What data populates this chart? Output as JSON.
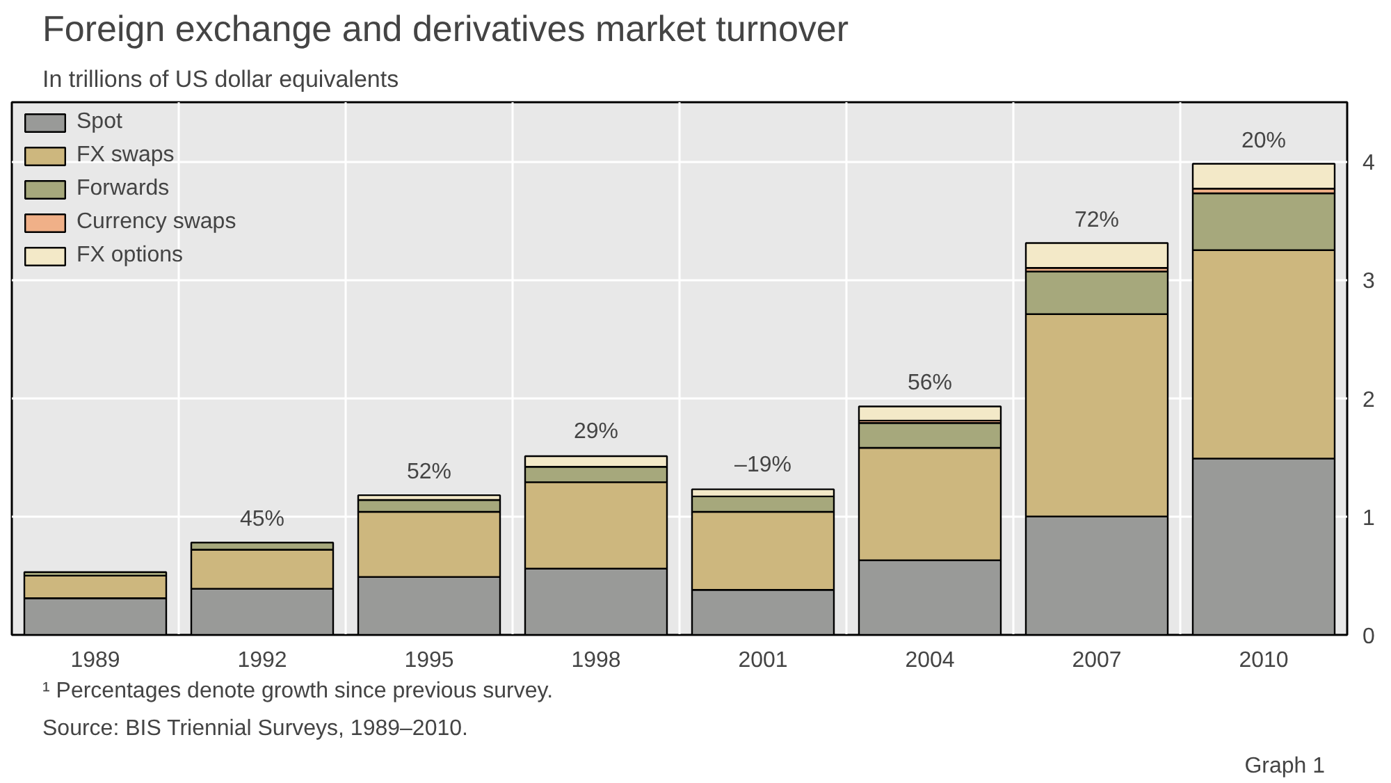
{
  "chart_data": {
    "type": "bar",
    "stacked": true,
    "title": "Foreign exchange and derivatives market turnover",
    "subtitle": "In trillions of US dollar equivalents",
    "categories": [
      "1989",
      "1992",
      "1995",
      "1998",
      "2001",
      "2004",
      "2007",
      "2010"
    ],
    "series": [
      {
        "name": "Spot",
        "color": "#999a98",
        "values": [
          0.31,
          0.39,
          0.49,
          0.56,
          0.38,
          0.63,
          1.0,
          1.49
        ]
      },
      {
        "name": "FX swaps",
        "color": "#cdb77e",
        "values": [
          0.19,
          0.33,
          0.55,
          0.73,
          0.66,
          0.95,
          1.71,
          1.76
        ]
      },
      {
        "name": "Forwards",
        "color": "#a6a87c",
        "values": [
          0.03,
          0.06,
          0.1,
          0.13,
          0.13,
          0.21,
          0.36,
          0.48
        ]
      },
      {
        "name": "Currency swaps",
        "color": "#f0b088",
        "values": [
          null,
          null,
          null,
          null,
          null,
          0.02,
          0.03,
          0.04
        ]
      },
      {
        "name": "FX options",
        "color": "#f3e9c8",
        "values": [
          null,
          null,
          0.04,
          0.09,
          0.06,
          0.12,
          0.21,
          0.21
        ]
      }
    ],
    "ylim": [
      0,
      4.5
    ],
    "yticks": [
      0,
      1,
      2,
      3,
      4
    ],
    "grid": true,
    "legend": "top left",
    "annotations": [
      {
        "text": "45%",
        "x": "1992",
        "y": 0.78
      },
      {
        "text": "52%",
        "x": "1995",
        "y": 1.18
      },
      {
        "text": "29%",
        "x": "1998",
        "y": 1.52
      },
      {
        "text": "–19%",
        "x": "2001",
        "y": 1.24
      },
      {
        "text": "56%",
        "x": "2004",
        "y": 1.93
      },
      {
        "text": "72%",
        "x": "2007",
        "y": 3.31
      },
      {
        "text": "20%",
        "x": "2010",
        "y": 3.98
      },
      "¹  Percentages denote growth since previous survey.",
      "Source: BIS Triennial Surveys, 1989–2010.",
      "Graph 1"
    ]
  }
}
